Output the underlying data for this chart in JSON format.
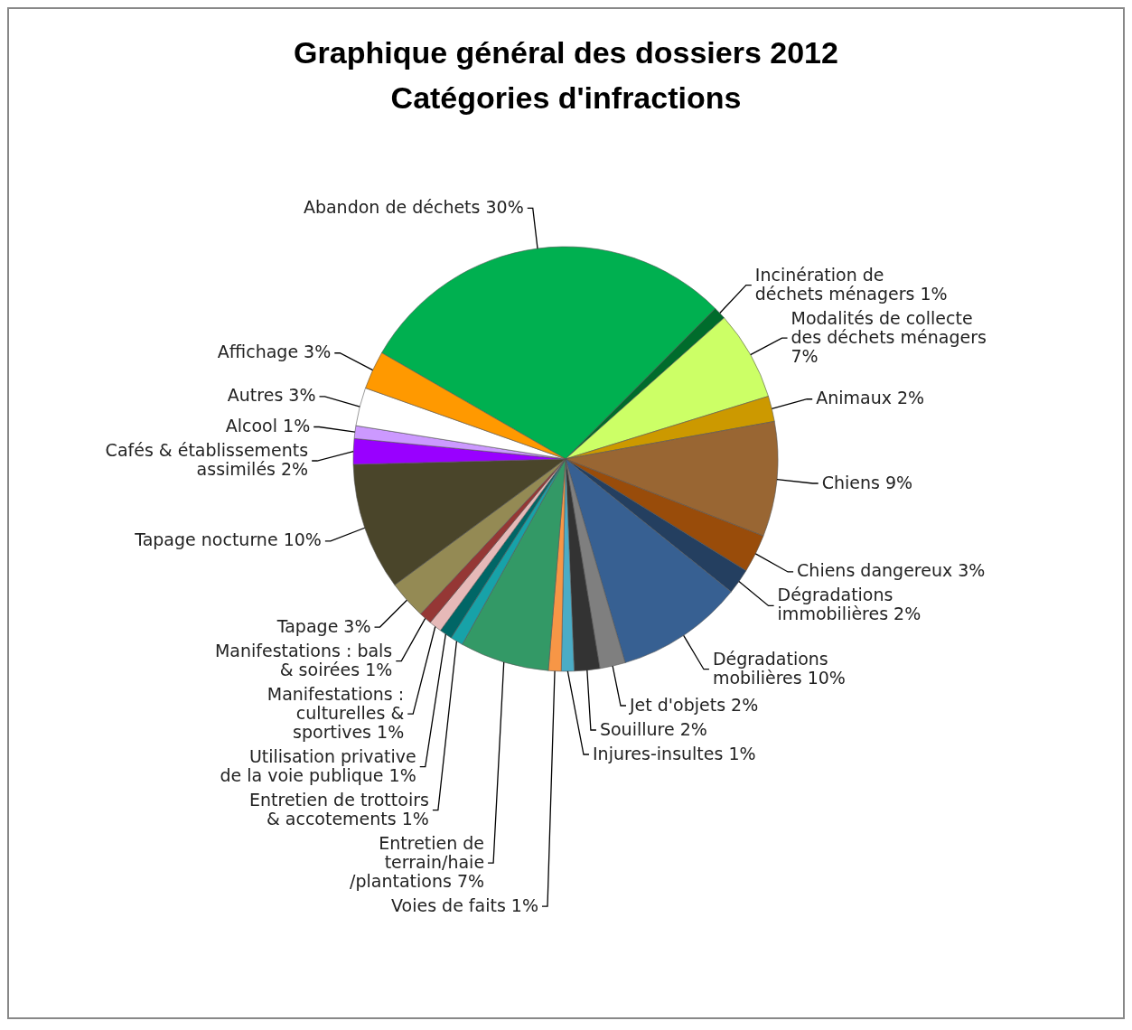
{
  "chart_data": {
    "type": "pie",
    "title": "Graphique général des dossiers 2012",
    "subtitle": "Catégories d'infractions",
    "categories": [
      "Abandon de déchets",
      "Incinération de déchets ménagers",
      "Modalités de collecte des déchets ménagers",
      "Animaux",
      "Chiens",
      "Chiens dangereux",
      "Dégradations immobilières",
      "Dégradations mobilières",
      "Jet d'objets",
      "Souillure",
      "Injures-insultes",
      "Voies de faits",
      "Entretien de terrain/haie /plantations",
      "Entretien de trottoirs & accotements",
      "Utilisation privative de la voie publique",
      "Manifestations : culturelles & sportives",
      "Manifestations : bals & soirées",
      "Tapage",
      "Tapage nocturne",
      "Cafés & établissements assimilés",
      "Alcool",
      "Autres",
      "Affichage"
    ],
    "values": [
      30,
      1,
      7,
      2,
      9,
      3,
      2,
      10,
      2,
      2,
      1,
      1,
      7,
      1,
      1,
      1,
      1,
      3,
      10,
      2,
      1,
      3,
      3
    ],
    "value_labels": [
      "30%",
      "1%",
      "7%",
      "2%",
      "9%",
      "3%",
      "2%",
      "10%",
      "2%",
      "2%",
      "1%",
      "1%",
      "7%",
      "1%",
      "1%",
      "1%",
      "1%",
      "3%",
      "10%",
      "2%",
      "1%",
      "3%",
      "3%"
    ],
    "colors": [
      "#00b050",
      "#006c2c",
      "#ccff66",
      "#cc9900",
      "#996633",
      "#994c0a",
      "#243f60",
      "#376092",
      "#7f7f7f",
      "#333333",
      "#4bacc6",
      "#f79646",
      "#339966",
      "#17a2a8",
      "#006666",
      "#e6b9b8",
      "#953735",
      "#948a54",
      "#4a452a",
      "#9900ff",
      "#cc99ff",
      "#ffffff",
      "#ff9900"
    ]
  }
}
